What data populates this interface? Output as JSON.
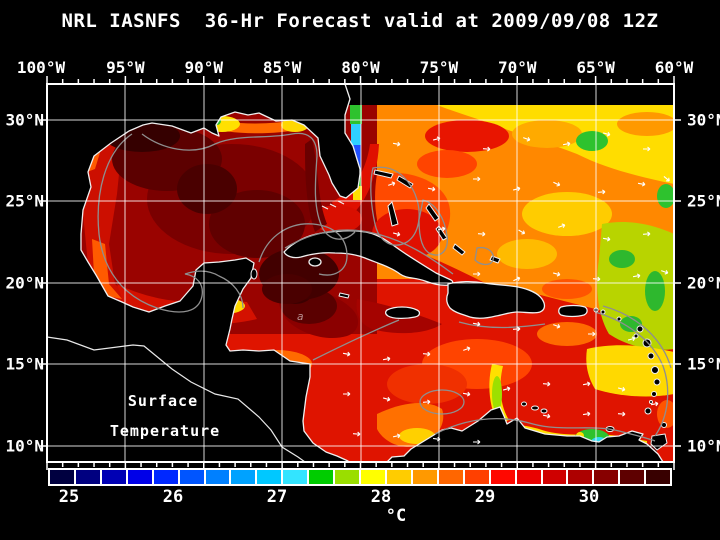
{
  "title": "NRL IASNFS  36-Hr Forecast valid at 2009/09/08 12Z",
  "axes": {
    "lon_labels": [
      "100°W",
      "95°W",
      "90°W",
      "85°W",
      "80°W",
      "75°W",
      "70°W",
      "65°W",
      "60°W"
    ],
    "lat_labels": [
      "30°N",
      "25°N",
      "20°N",
      "15°N",
      "10°N"
    ]
  },
  "map_overlay": {
    "line1": "Surface",
    "line2": "Temperature",
    "small_label": "a"
  },
  "colorbar": {
    "unit": "°C",
    "tick_labels": [
      "25",
      "26",
      "27",
      "28",
      "29",
      "30"
    ],
    "cell_colors": [
      "#000040",
      "#000080",
      "#0000b4",
      "#0000e8",
      "#0028ff",
      "#0055ff",
      "#0080ff",
      "#00a2ff",
      "#00c8ff",
      "#33e4ff",
      "#00cc00",
      "#9ade00",
      "#ffff00",
      "#ffcc00",
      "#ff9900",
      "#ff6600",
      "#ff4000",
      "#ff0800",
      "#ea0000",
      "#cf0000",
      "#ad0000",
      "#870000",
      "#5e0000",
      "#380000"
    ]
  },
  "chart_data": {
    "type": "heatmap",
    "title": "NRL IASNFS  36-Hr Forecast valid at 2009/09/08 12Z",
    "variable": "Surface Temperature",
    "unit": "°C",
    "colorbar_tick_values": [
      25,
      26,
      27,
      28,
      29,
      30
    ],
    "colorbar_cell_count": 24,
    "x_tick_labels": [
      "100°W",
      "95°W",
      "90°W",
      "85°W",
      "80°W",
      "75°W",
      "70°W",
      "65°W",
      "60°W"
    ],
    "y_tick_labels": [
      "30°N",
      "25°N",
      "20°N",
      "15°N",
      "10°N"
    ],
    "grid": "on",
    "legend_position": "bottom"
  }
}
